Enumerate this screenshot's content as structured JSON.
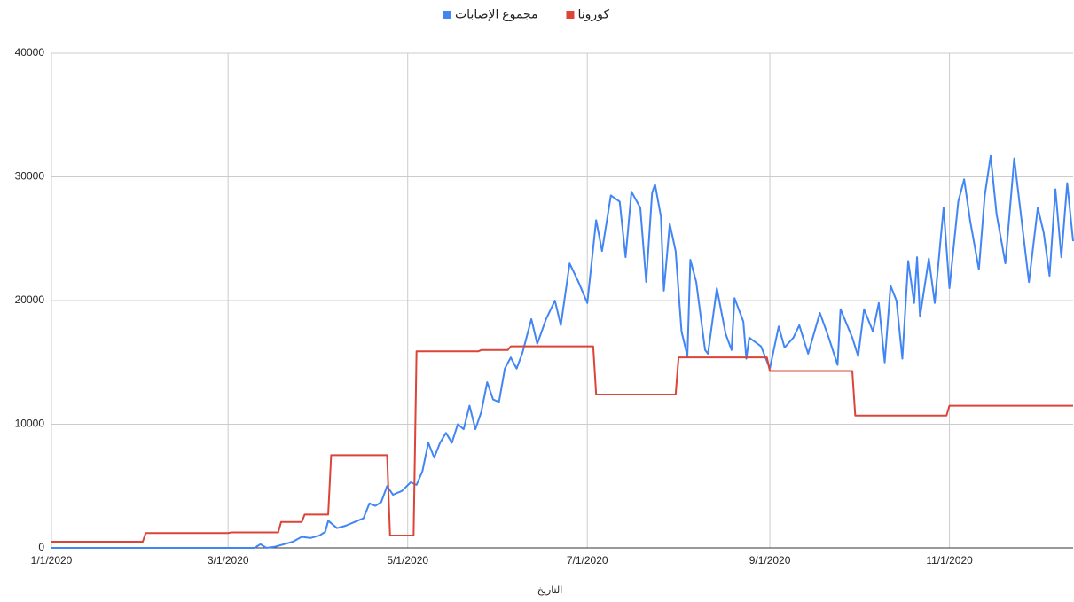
{
  "chart_data": {
    "type": "line",
    "x_label": "التاريخ",
    "xlim": [
      "1/1/2020",
      "12/13/2020"
    ],
    "xticks": [
      "1/1/2020",
      "3/1/2020",
      "5/1/2020",
      "7/1/2020",
      "9/1/2020",
      "11/1/2020"
    ],
    "ylim": [
      0,
      40000
    ],
    "yticks": [
      0,
      10000,
      20000,
      30000,
      40000
    ],
    "grid": true,
    "legend": "top",
    "series": [
      {
        "name": "مجموع الإصابات",
        "color": "#4285f4",
        "x": [
          "1/1/2020",
          "3/10/2020",
          "3/12/2020",
          "3/14/2020",
          "3/17/2020",
          "3/20/2020",
          "3/23/2020",
          "3/26/2020",
          "3/29/2020",
          "4/1/2020",
          "4/3/2020",
          "4/4/2020",
          "4/7/2020",
          "4/10/2020",
          "4/13/2020",
          "4/16/2020",
          "4/18/2020",
          "4/20/2020",
          "4/22/2020",
          "4/24/2020",
          "4/26/2020",
          "4/29/2020",
          "5/2/2020",
          "5/4/2020",
          "5/6/2020",
          "5/8/2020",
          "5/10/2020",
          "5/12/2020",
          "5/14/2020",
          "5/16/2020",
          "5/18/2020",
          "5/20/2020",
          "5/22/2020",
          "5/24/2020",
          "5/26/2020",
          "5/28/2020",
          "5/30/2020",
          "6/1/2020",
          "6/3/2020",
          "6/5/2020",
          "6/7/2020",
          "6/9/2020",
          "6/12/2020",
          "6/14/2020",
          "6/17/2020",
          "6/20/2020",
          "6/22/2020",
          "6/25/2020",
          "6/28/2020",
          "7/1/2020",
          "7/4/2020",
          "7/6/2020",
          "7/9/2020",
          "7/12/2020",
          "7/14/2020",
          "7/16/2020",
          "7/19/2020",
          "7/21/2020",
          "7/23/2020",
          "7/24/2020",
          "7/26/2020",
          "7/27/2020",
          "7/29/2020",
          "7/31/2020",
          "8/2/2020",
          "8/4/2020",
          "8/5/2020",
          "8/7/2020",
          "8/10/2020",
          "8/11/2020",
          "8/14/2020",
          "8/17/2020",
          "8/19/2020",
          "8/20/2020",
          "8/23/2020",
          "8/24/2020",
          "8/25/2020",
          "8/29/2020",
          "9/1/2020",
          "9/4/2020",
          "9/6/2020",
          "9/9/2020",
          "9/11/2020",
          "9/14/2020",
          "9/18/2020",
          "9/21/2020",
          "9/24/2020",
          "9/25/2020",
          "9/29/2020",
          "10/1/2020",
          "10/3/2020",
          "10/6/2020",
          "10/8/2020",
          "10/10/2020",
          "10/12/2020",
          "10/14/2020",
          "10/16/2020",
          "10/18/2020",
          "10/20/2020",
          "10/21/2020",
          "10/22/2020",
          "10/25/2020",
          "10/27/2020",
          "10/30/2020",
          "11/1/2020",
          "11/4/2020",
          "11/6/2020",
          "11/8/2020",
          "11/11/2020",
          "11/13/2020",
          "11/15/2020",
          "11/17/2020",
          "11/20/2020",
          "11/23/2020",
          "11/25/2020",
          "11/28/2020",
          "12/1/2020",
          "12/3/2020",
          "12/5/2020",
          "12/7/2020",
          "12/9/2020",
          "12/11/2020",
          "12/13/2020"
        ],
        "values": [
          0,
          0,
          300,
          0,
          100,
          300,
          500,
          900,
          800,
          1000,
          1300,
          2200,
          1600,
          1800,
          2100,
          2400,
          3600,
          3400,
          3700,
          5000,
          4300,
          4600,
          5300,
          5100,
          6200,
          8500,
          7300,
          8500,
          9300,
          8500,
          10000,
          9600,
          11500,
          9600,
          11000,
          13400,
          12000,
          11800,
          14500,
          15400,
          14500,
          15800,
          18500,
          16500,
          18500,
          20000,
          18000,
          23000,
          21500,
          19800,
          26500,
          24000,
          28500,
          28000,
          23500,
          28800,
          27500,
          21500,
          28700,
          29400,
          26800,
          20800,
          26200,
          24000,
          17500,
          15500,
          23300,
          21500,
          16000,
          15700,
          21000,
          17300,
          16000,
          20200,
          18300,
          15300,
          17000,
          16300,
          14500,
          17900,
          16200,
          17000,
          18000,
          15700,
          19000,
          17000,
          14800,
          19300,
          17000,
          15500,
          19300,
          17500,
          19800,
          15000,
          21200,
          20000,
          15300,
          23200,
          19800,
          23500,
          18700,
          23400,
          19800,
          27500,
          21000,
          28000,
          29800,
          26500,
          22500,
          28500,
          31700,
          27000,
          23000,
          31500,
          27500,
          21500,
          27500,
          25500,
          22000,
          29000,
          23500,
          29500,
          24800
        ]
      },
      {
        "name": "كورونا",
        "color": "#db4437",
        "x": [
          "1/1/2020",
          "2/1/2020",
          "2/2/2020",
          "3/1/2020",
          "3/2/2020",
          "3/18/2020",
          "3/19/2020",
          "3/26/2020",
          "3/27/2020",
          "4/4/2020",
          "4/5/2020",
          "4/24/2020",
          "4/25/2020",
          "5/3/2020",
          "5/4/2020",
          "5/25/2020",
          "5/26/2020",
          "6/4/2020",
          "6/5/2020",
          "7/3/2020",
          "7/4/2020",
          "7/31/2020",
          "8/1/2020",
          "8/31/2020",
          "9/1/2020",
          "9/29/2020",
          "9/30/2020",
          "10/31/2020",
          "11/1/2020",
          "12/13/2020"
        ],
        "values": [
          500,
          500,
          1200,
          1200,
          1250,
          1250,
          2100,
          2100,
          2700,
          2700,
          7500,
          7500,
          1000,
          1000,
          15900,
          15900,
          16000,
          16000,
          16300,
          16300,
          12400,
          12400,
          15400,
          15400,
          14300,
          14300,
          10700,
          10700,
          11500,
          11500
        ]
      }
    ]
  }
}
